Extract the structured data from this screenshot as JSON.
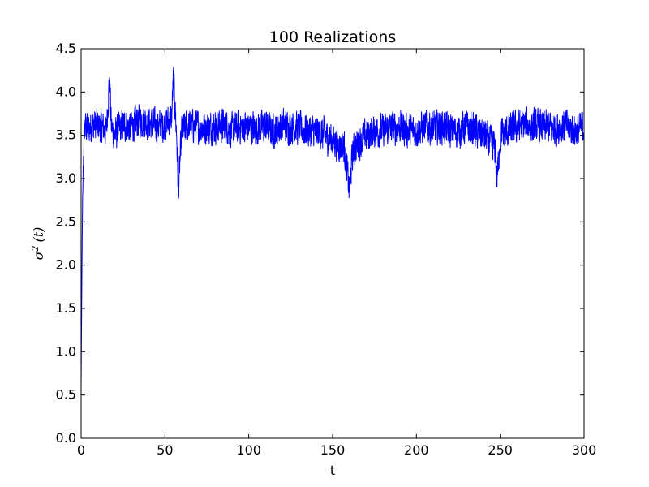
{
  "chart_data": {
    "type": "line",
    "title": "100 Realizations",
    "xlabel": "t",
    "ylabel": "σ²(t)",
    "xlim": [
      0,
      300
    ],
    "ylim": [
      0.0,
      4.5
    ],
    "xticks": [
      0,
      50,
      100,
      150,
      200,
      250,
      300
    ],
    "yticks": [
      0.0,
      0.5,
      1.0,
      1.5,
      2.0,
      2.5,
      3.0,
      3.5,
      4.0,
      4.5
    ],
    "xtick_labels": [
      "0",
      "50",
      "100",
      "150",
      "200",
      "250",
      "300"
    ],
    "ytick_labels": [
      "0.0",
      "0.5",
      "1.0",
      "1.5",
      "2.0",
      "2.5",
      "3.0",
      "3.5",
      "4.0",
      "4.5"
    ],
    "grid": false,
    "series": [
      {
        "color": "#0000ff",
        "x": [
          0,
          0.3,
          0.6,
          1,
          1.5,
          2,
          3,
          5,
          8,
          12,
          15,
          17,
          18,
          20,
          25,
          30,
          35,
          40,
          45,
          50,
          54,
          55,
          57,
          58,
          60,
          65,
          70,
          75,
          80,
          85,
          90,
          95,
          100,
          105,
          110,
          115,
          120,
          125,
          130,
          135,
          140,
          145,
          150,
          153,
          157,
          160,
          162,
          165,
          170,
          175,
          180,
          185,
          190,
          195,
          200,
          205,
          210,
          215,
          220,
          225,
          230,
          235,
          240,
          245,
          247,
          248,
          250,
          255,
          260,
          265,
          270,
          275,
          280,
          285,
          290,
          295,
          300
        ],
        "y": [
          0.6,
          1.4,
          2.2,
          2.85,
          3.35,
          3.55,
          3.6,
          3.58,
          3.62,
          3.6,
          3.55,
          4.17,
          3.6,
          3.5,
          3.62,
          3.6,
          3.68,
          3.65,
          3.6,
          3.62,
          3.7,
          4.17,
          3.5,
          2.85,
          3.55,
          3.62,
          3.6,
          3.58,
          3.6,
          3.62,
          3.55,
          3.6,
          3.6,
          3.58,
          3.6,
          3.55,
          3.62,
          3.6,
          3.58,
          3.55,
          3.55,
          3.5,
          3.45,
          3.4,
          3.35,
          2.86,
          3.3,
          3.4,
          3.5,
          3.55,
          3.55,
          3.58,
          3.6,
          3.55,
          3.55,
          3.6,
          3.58,
          3.6,
          3.55,
          3.55,
          3.6,
          3.55,
          3.5,
          3.4,
          3.35,
          2.95,
          3.5,
          3.55,
          3.6,
          3.62,
          3.6,
          3.6,
          3.58,
          3.6,
          3.6,
          3.55,
          3.6
        ],
        "noise_amplitude": 0.25
      }
    ]
  }
}
